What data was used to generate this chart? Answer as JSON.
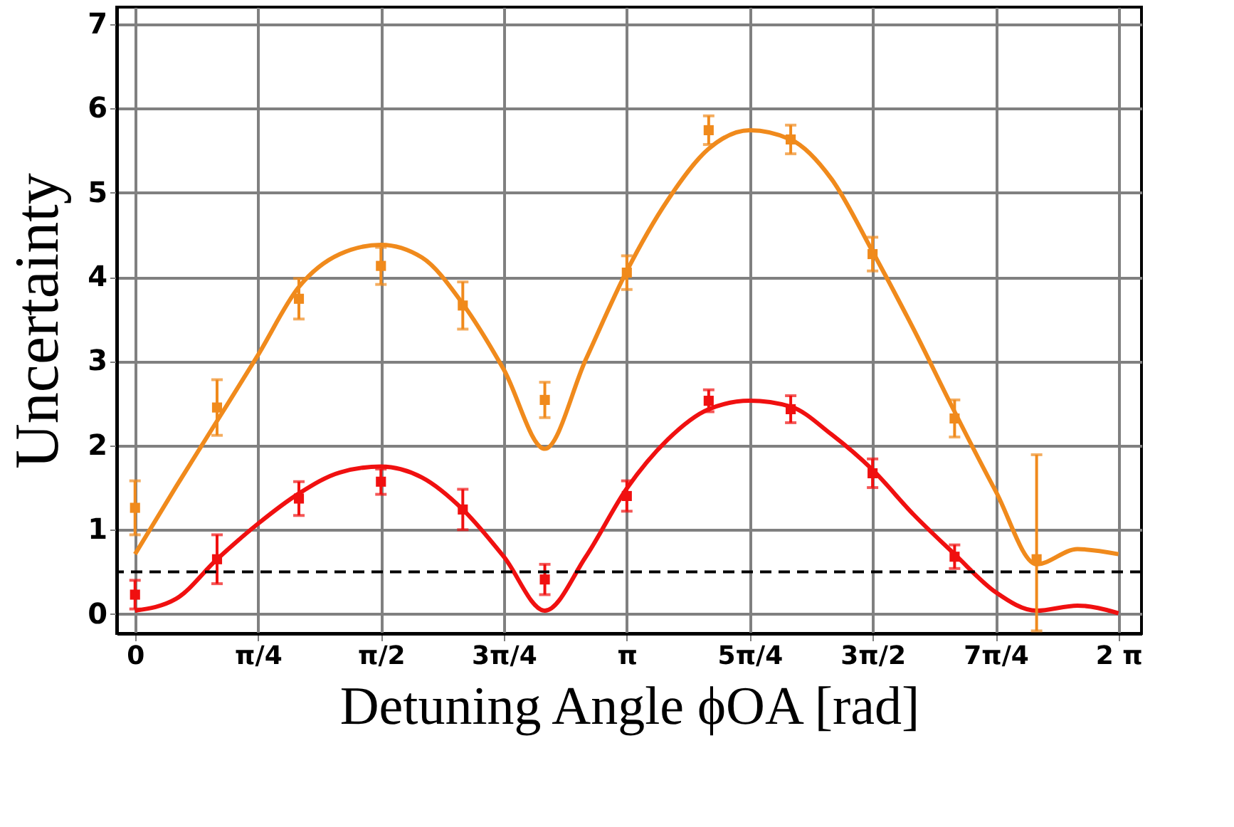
{
  "chart_data": {
    "type": "scatter",
    "xlabel": "Detuning Angle ϕOA [rad]",
    "ylabel": "Uncertainty",
    "xlim": [
      -0.117,
      6.43
    ],
    "ylim": [
      -0.23,
      7.2
    ],
    "xticks": [
      {
        "value": 0,
        "label": "0"
      },
      {
        "value": 0.785,
        "label": "π/4"
      },
      {
        "value": 1.571,
        "label": "π/2"
      },
      {
        "value": 2.356,
        "label": "3π/4"
      },
      {
        "value": 3.142,
        "label": "π"
      },
      {
        "value": 3.927,
        "label": "5π/4"
      },
      {
        "value": 4.712,
        "label": "3π/2"
      },
      {
        "value": 5.498,
        "label": "7π/4"
      },
      {
        "value": 6.283,
        "label": "2 π"
      }
    ],
    "yticks": [
      0,
      1,
      2,
      3,
      4,
      5,
      6,
      7
    ],
    "grid": true,
    "marker": "square",
    "ref_lines": [
      {
        "axis": "y",
        "value": 0.5,
        "color": "#000000",
        "line_style": "dashed"
      }
    ],
    "series": [
      {
        "type": "line",
        "marker": "none",
        "color": "#f08a1c",
        "line_style": "solid",
        "x": [
          0,
          0.262,
          0.524,
          0.785,
          1.047,
          1.309,
          1.571,
          1.833,
          2.094,
          2.356,
          2.618,
          2.88,
          3.142,
          3.403,
          3.665,
          3.927,
          4.189,
          4.45,
          4.712,
          4.974,
          5.236,
          5.498,
          5.76,
          6.021,
          6.283
        ],
        "values": [
          0.71,
          1.51,
          2.29,
          3.07,
          3.88,
          4.27,
          4.38,
          4.23,
          3.68,
          2.9,
          1.96,
          3.02,
          4.07,
          4.91,
          5.52,
          5.74,
          5.63,
          5.16,
          4.3,
          3.38,
          2.4,
          1.46,
          0.59,
          0.77,
          0.71
        ]
      },
      {
        "type": "line",
        "marker": "none",
        "color": "#f01010",
        "line_style": "solid",
        "x": [
          0,
          0.262,
          0.524,
          0.785,
          1.047,
          1.309,
          1.571,
          1.833,
          2.094,
          2.356,
          2.618,
          2.88,
          3.142,
          3.403,
          3.665,
          3.927,
          4.189,
          4.45,
          4.712,
          4.974,
          5.236,
          5.498,
          5.76,
          6.021,
          6.283
        ],
        "values": [
          0.04,
          0.18,
          0.65,
          1.07,
          1.43,
          1.68,
          1.75,
          1.62,
          1.24,
          0.68,
          0.04,
          0.68,
          1.49,
          2.07,
          2.43,
          2.53,
          2.46,
          2.13,
          1.71,
          1.18,
          0.71,
          0.26,
          0.04,
          0.1,
          0.01
        ]
      },
      {
        "color": "#f08a1c",
        "x": [
          0,
          0.524,
          1.047,
          1.571,
          2.094,
          2.618,
          3.142,
          3.665,
          4.189,
          4.712,
          5.236,
          5.76
        ],
        "values": [
          1.26,
          2.45,
          3.74,
          4.13,
          3.66,
          2.54,
          4.05,
          5.74,
          5.63,
          4.27,
          2.32,
          0.65
        ],
        "errors": [
          0.32,
          0.33,
          0.24,
          0.22,
          0.28,
          0.21,
          0.2,
          0.17,
          0.17,
          0.2,
          0.22,
          [
            -0.2,
            1.89
          ]
        ]
      },
      {
        "color": "#f01010",
        "x": [
          0,
          0.524,
          1.047,
          1.571,
          2.094,
          2.618,
          3.142,
          3.665,
          4.189,
          4.712,
          5.236
        ],
        "values": [
          0.23,
          0.65,
          1.37,
          1.57,
          1.24,
          0.41,
          1.4,
          2.53,
          2.43,
          1.67,
          0.68
        ],
        "errors": [
          0.17,
          0.29,
          0.2,
          0.15,
          0.24,
          0.18,
          0.18,
          0.13,
          0.16,
          0.17,
          0.14
        ]
      }
    ]
  }
}
